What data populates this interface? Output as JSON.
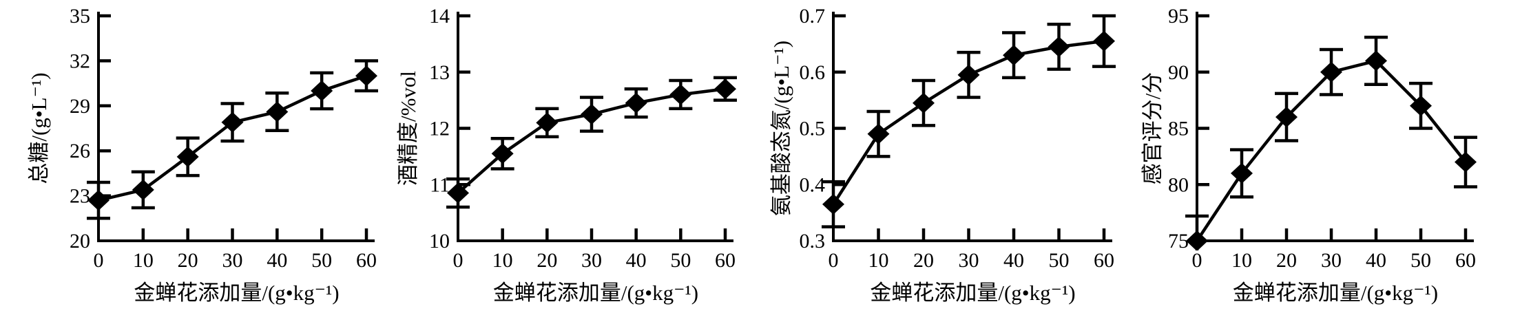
{
  "figure": {
    "background": "#ffffff",
    "ink_color": "#000000",
    "n_panels": 4
  },
  "chart_data": [
    {
      "type": "line",
      "name": "total-sugar",
      "xlabel": "金蝉花添加量/(g•kg⁻¹)",
      "ylabel": "总糖/(g•L⁻¹)",
      "x": [
        0,
        10,
        20,
        30,
        40,
        50,
        60
      ],
      "y": [
        22.7,
        23.4,
        25.6,
        27.9,
        28.6,
        30.0,
        31.0
      ],
      "yerr": [
        1.2,
        1.2,
        1.25,
        1.25,
        1.25,
        1.2,
        1.0
      ],
      "xlim": [
        0,
        60
      ],
      "ylim": [
        20,
        35
      ],
      "xticks": [
        0,
        10,
        20,
        30,
        40,
        50,
        60
      ],
      "xtick_labels": [
        "0",
        "10",
        "20",
        "30",
        "40",
        "50",
        "60"
      ],
      "yticks": [
        20,
        23,
        26,
        29,
        32,
        35
      ],
      "ytick_labels": [
        "20",
        "23",
        "26",
        "29",
        "32",
        "35"
      ],
      "marker": "diamond",
      "color": "#000000",
      "grid": false,
      "legend": null
    },
    {
      "type": "line",
      "name": "alcohol-content",
      "xlabel": "金蝉花添加量/(g•kg⁻¹)",
      "ylabel": "酒精度/%vol",
      "x": [
        0,
        10,
        20,
        30,
        40,
        50,
        60
      ],
      "y": [
        10.85,
        11.55,
        12.1,
        12.25,
        12.45,
        12.6,
        12.7
      ],
      "yerr": [
        0.25,
        0.27,
        0.25,
        0.3,
        0.25,
        0.25,
        0.2
      ],
      "xlim": [
        0,
        60
      ],
      "ylim": [
        10,
        14
      ],
      "xticks": [
        0,
        10,
        20,
        30,
        40,
        50,
        60
      ],
      "xtick_labels": [
        "0",
        "10",
        "20",
        "30",
        "40",
        "50",
        "60"
      ],
      "yticks": [
        10,
        11,
        12,
        13,
        14
      ],
      "ytick_labels": [
        "10",
        "11",
        "12",
        "13",
        "14"
      ],
      "marker": "diamond",
      "color": "#000000",
      "grid": false,
      "legend": null
    },
    {
      "type": "line",
      "name": "amino-acid-nitrogen",
      "xlabel": "金蝉花添加量/(g•kg⁻¹)",
      "ylabel": "氨基酸态氮/(g•L⁻¹)",
      "x": [
        0,
        10,
        20,
        30,
        40,
        50,
        60
      ],
      "y": [
        0.365,
        0.49,
        0.545,
        0.595,
        0.63,
        0.645,
        0.655
      ],
      "yerr": [
        0.04,
        0.04,
        0.04,
        0.04,
        0.04,
        0.04,
        0.045
      ],
      "xlim": [
        0,
        60
      ],
      "ylim": [
        0.3,
        0.7
      ],
      "xticks": [
        0,
        10,
        20,
        30,
        40,
        50,
        60
      ],
      "xtick_labels": [
        "0",
        "10",
        "20",
        "30",
        "40",
        "50",
        "60"
      ],
      "yticks": [
        0.3,
        0.4,
        0.5,
        0.6,
        0.7
      ],
      "ytick_labels": [
        "0.3",
        "0.4",
        "0.5",
        "0.6",
        "0.7"
      ],
      "marker": "diamond",
      "color": "#000000",
      "grid": false,
      "legend": null
    },
    {
      "type": "line",
      "name": "sensory-score",
      "xlabel": "金蝉花添加量/(g•kg⁻¹)",
      "ylabel": "感官评分/分",
      "x": [
        0,
        10,
        20,
        30,
        40,
        50,
        60
      ],
      "y": [
        75,
        81,
        86,
        90,
        91,
        87,
        82
      ],
      "yerr": [
        2.2,
        2.1,
        2.1,
        2.0,
        2.1,
        2.0,
        2.2
      ],
      "xlim": [
        0,
        60
      ],
      "ylim": [
        75,
        95
      ],
      "xticks": [
        0,
        10,
        20,
        30,
        40,
        50,
        60
      ],
      "xtick_labels": [
        "0",
        "10",
        "20",
        "30",
        "40",
        "50",
        "60"
      ],
      "yticks": [
        75,
        80,
        85,
        90,
        95
      ],
      "ytick_labels": [
        "75",
        "80",
        "85",
        "90",
        "95"
      ],
      "marker": "diamond",
      "color": "#000000",
      "grid": false,
      "legend": null
    }
  ]
}
